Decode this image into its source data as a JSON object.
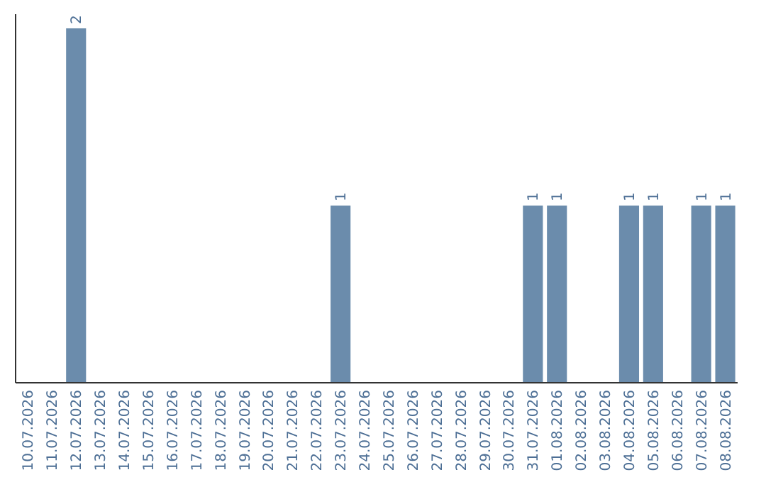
{
  "chart_data": {
    "type": "bar",
    "categories": [
      "10.07.2026",
      "11.07.2026",
      "12.07.2026",
      "13.07.2026",
      "14.07.2026",
      "15.07.2026",
      "16.07.2026",
      "17.07.2026",
      "18.07.2026",
      "19.07.2026",
      "20.07.2026",
      "21.07.2026",
      "22.07.2026",
      "23.07.2026",
      "24.07.2026",
      "25.07.2026",
      "26.07.2026",
      "27.07.2026",
      "28.07.2026",
      "29.07.2026",
      "30.07.2026",
      "31.07.2026",
      "01.08.2026",
      "02.08.2026",
      "03.08.2026",
      "04.08.2026",
      "05.08.2026",
      "06.08.2026",
      "07.08.2026",
      "08.08.2026"
    ],
    "values": [
      0,
      0,
      2,
      0,
      0,
      0,
      0,
      0,
      0,
      0,
      0,
      0,
      0,
      1,
      0,
      0,
      0,
      0,
      0,
      0,
      0,
      1,
      1,
      0,
      0,
      1,
      1,
      0,
      1,
      1
    ],
    "value_labels": [
      null,
      null,
      "2",
      null,
      null,
      null,
      null,
      null,
      null,
      null,
      null,
      null,
      null,
      "1",
      null,
      null,
      null,
      null,
      null,
      null,
      null,
      "1",
      "1",
      null,
      null,
      "1",
      "1",
      null,
      "1",
      "1"
    ],
    "color": "#6b8cac",
    "ylim": [
      0,
      2
    ],
    "tick_labels": "x",
    "grid": false
  }
}
